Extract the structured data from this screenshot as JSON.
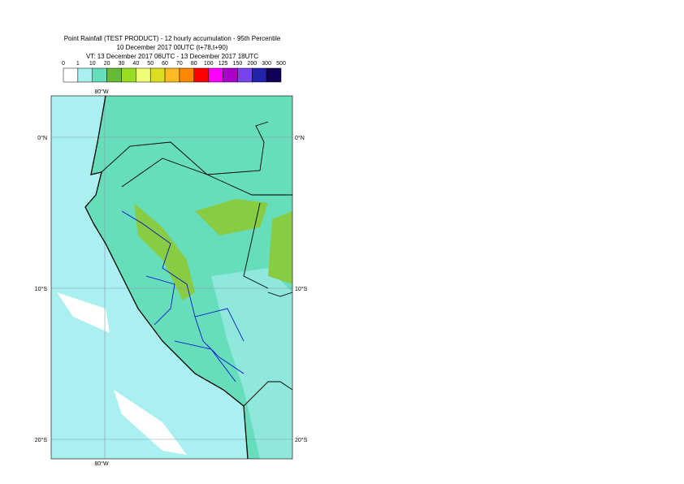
{
  "header": {
    "title": "Point Rainfall (TEST PRODUCT) - 12 hourly accumulation - 95th Percentile",
    "base_time": "10 December 2017 00UTC (t+78,t+90)",
    "valid_time": "VT: 13 December 2017 06UTC - 13 December 2017 18UTC"
  },
  "legend": {
    "ticks": [
      "0",
      "1",
      "10",
      "20",
      "30",
      "40",
      "50",
      "60",
      "70",
      "80",
      "100",
      "125",
      "150",
      "200",
      "300",
      "500"
    ],
    "colors": [
      "#ffffff",
      "#aaf0f0",
      "#66ddbb",
      "#66bb33",
      "#99dd22",
      "#eeff77",
      "#dddd22",
      "#ffbb22",
      "#ff8800",
      "#ff0000",
      "#ff00ff",
      "#aa00cc",
      "#7744ee",
      "#2222aa",
      "#110055"
    ]
  },
  "map": {
    "lon_labels": [
      "80°W",
      "80°W"
    ],
    "lat_labels_left": [
      "0°N",
      "10°S",
      "20°S"
    ],
    "lat_labels_right": [
      "0°N",
      "10°S",
      "20°S"
    ]
  }
}
